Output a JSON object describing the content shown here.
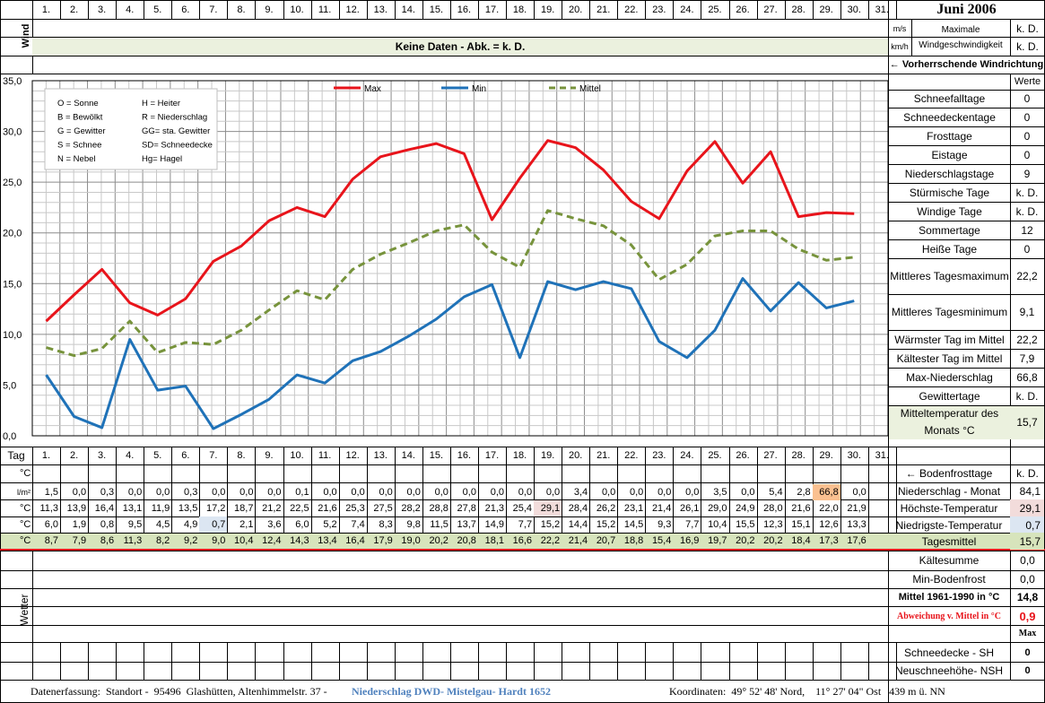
{
  "month_title": "Juni 2006",
  "days": [
    "1.",
    "2.",
    "3.",
    "4.",
    "5.",
    "6.",
    "7.",
    "8.",
    "9.",
    "10.",
    "11.",
    "12.",
    "13.",
    "14.",
    "15.",
    "16.",
    "17.",
    "18.",
    "19.",
    "20.",
    "21.",
    "22.",
    "23.",
    "24.",
    "25.",
    "26.",
    "27.",
    "28.",
    "29.",
    "30.",
    "31."
  ],
  "wind": {
    "label": "Wind",
    "unit_ms": "m/s",
    "unit_kmh": "km/h",
    "max_label": "Maximale Windgeschwindigkeit",
    "max_ms": "k. D.",
    "max_kmh": "k. D.",
    "no_data": "Keine Daten - Abk. = k. D.",
    "direction_label": "← Vorherrschende Windrichtung"
  },
  "legend_symbols": [
    [
      "O = Sonne",
      "H = Heiter"
    ],
    [
      "B = Bewölkt",
      "R = Niederschlag"
    ],
    [
      "G = Gewitter",
      "GG= sta. Gewitter"
    ],
    [
      "S = Schnee",
      "SD= Schneedecke"
    ],
    [
      "N = Nebel",
      "Hg= Hagel"
    ]
  ],
  "chart_data": {
    "type": "line",
    "x": [
      "1.",
      "2.",
      "3.",
      "4.",
      "5.",
      "6.",
      "7.",
      "8.",
      "9.",
      "10.",
      "11.",
      "12.",
      "13.",
      "14.",
      "15.",
      "16.",
      "17.",
      "18.",
      "19.",
      "20.",
      "21.",
      "22.",
      "23.",
      "24.",
      "25.",
      "26.",
      "27.",
      "28.",
      "29.",
      "30."
    ],
    "ylim": [
      0,
      35
    ],
    "yticks": [
      "0,0",
      "5,0",
      "10,0",
      "15,0",
      "20,0",
      "25,0",
      "30,0",
      "35,0"
    ],
    "grid": true,
    "legend_position": "top",
    "series": [
      {
        "name": "Max",
        "color": "#e8141b",
        "style": "solid",
        "values": [
          11.3,
          13.9,
          16.4,
          13.1,
          11.9,
          13.5,
          17.2,
          18.7,
          21.2,
          22.5,
          21.6,
          25.3,
          27.5,
          28.2,
          28.8,
          27.8,
          21.3,
          25.4,
          29.1,
          28.4,
          26.2,
          23.1,
          21.4,
          26.1,
          29.0,
          24.9,
          28.0,
          21.6,
          22.0,
          21.9
        ]
      },
      {
        "name": "Min",
        "color": "#1f72b8",
        "style": "solid",
        "values": [
          6.0,
          1.9,
          0.8,
          9.5,
          4.5,
          4.9,
          0.7,
          2.1,
          3.6,
          6.0,
          5.2,
          7.4,
          8.3,
          9.8,
          11.5,
          13.7,
          14.9,
          7.7,
          15.2,
          14.4,
          15.2,
          14.5,
          9.3,
          7.7,
          10.4,
          15.5,
          12.3,
          15.1,
          12.6,
          13.3
        ]
      },
      {
        "name": "Mittel",
        "color": "#77933c",
        "style": "dashed",
        "values": [
          8.7,
          7.9,
          8.6,
          11.3,
          8.2,
          9.2,
          9.0,
          10.4,
          12.4,
          14.3,
          13.4,
          16.4,
          17.9,
          19.0,
          20.2,
          20.8,
          18.1,
          16.6,
          22.2,
          21.4,
          20.7,
          18.8,
          15.4,
          16.9,
          19.7,
          20.2,
          20.2,
          18.4,
          17.3,
          17.6
        ]
      }
    ]
  },
  "stats_header": "Werte",
  "stats": [
    {
      "label": "Schneefalltage",
      "value": "0"
    },
    {
      "label": "Schneedeckentage",
      "value": "0"
    },
    {
      "label": "Frosttage",
      "value": "0"
    },
    {
      "label": "Eistage",
      "value": "0"
    },
    {
      "label": "Niederschlagstage",
      "value": "9"
    },
    {
      "label": "Stürmische Tage",
      "value": "k. D."
    },
    {
      "label": "Windige Tage",
      "value": "k. D."
    },
    {
      "label": "Sommertage",
      "value": "12"
    },
    {
      "label": "Heiße Tage",
      "value": "0"
    },
    {
      "label": "Mittleres Tagesmaximum",
      "value": "22,2"
    },
    {
      "label": "Mittleres Tagesminimum",
      "value": "9,1"
    },
    {
      "label": "Wärmster Tag im Mittel",
      "value": "22,2"
    },
    {
      "label": "Kältester Tag im Mittel",
      "value": "7,9"
    },
    {
      "label": "Max-Niederschlag",
      "value": "66,8"
    },
    {
      "label": "Gewittertage",
      "value": "k. D."
    },
    {
      "label": "Mitteltemperatur des Monats °C",
      "value": "15,7"
    }
  ],
  "table": {
    "tag_label": "Tag",
    "unit_bodenfrost": "°C",
    "unit_precip": "l/m²",
    "unit_c": "°C",
    "bodenfrost_label": "← Bodenfrosttage",
    "bodenfrost_value": "k. D.",
    "precip": [
      "1,5",
      "0,0",
      "0,3",
      "0,0",
      "0,0",
      "0,3",
      "0,0",
      "0,0",
      "0,0",
      "0,1",
      "0,0",
      "0,0",
      "0,0",
      "0,0",
      "0,0",
      "0,0",
      "0,0",
      "0,0",
      "0,0",
      "3,4",
      "0,0",
      "0,0",
      "0,0",
      "0,0",
      "3,5",
      "0,0",
      "5,4",
      "2,8",
      "66,8",
      "0,0"
    ],
    "max": [
      "11,3",
      "13,9",
      "16,4",
      "13,1",
      "11,9",
      "13,5",
      "17,2",
      "18,7",
      "21,2",
      "22,5",
      "21,6",
      "25,3",
      "27,5",
      "28,2",
      "28,8",
      "27,8",
      "21,3",
      "25,4",
      "29,1",
      "28,4",
      "26,2",
      "23,1",
      "21,4",
      "26,1",
      "29,0",
      "24,9",
      "28,0",
      "21,6",
      "22,0",
      "21,9"
    ],
    "min": [
      "6,0",
      "1,9",
      "0,8",
      "9,5",
      "4,5",
      "4,9",
      "0,7",
      "2,1",
      "3,6",
      "6,0",
      "5,2",
      "7,4",
      "8,3",
      "9,8",
      "11,5",
      "13,7",
      "14,9",
      "7,7",
      "15,2",
      "14,4",
      "15,2",
      "14,5",
      "9,3",
      "7,7",
      "10,4",
      "15,5",
      "12,3",
      "15,1",
      "12,6",
      "13,3"
    ],
    "mean": [
      "8,7",
      "7,9",
      "8,6",
      "11,3",
      "8,2",
      "9,2",
      "9,0",
      "10,4",
      "12,4",
      "14,3",
      "13,4",
      "16,4",
      "17,9",
      "19,0",
      "20,2",
      "20,8",
      "18,1",
      "16,6",
      "22,2",
      "21,4",
      "20,7",
      "18,8",
      "15,4",
      "16,9",
      "19,7",
      "20,2",
      "20,2",
      "18,4",
      "17,3",
      "17,6"
    ],
    "summary": [
      {
        "label": "Niederschlag - Monat",
        "value": "84,1"
      },
      {
        "label": "Höchste-Temperatur",
        "value": "29,1"
      },
      {
        "label": "Niedrigste-Temperatur",
        "value": "0,7"
      },
      {
        "label": "Tagesmittel",
        "value": "15,7"
      }
    ]
  },
  "lower_right": {
    "kaeltesumme_label": "Kältesumme",
    "kaeltesumme_value": "0,0",
    "bodenfrost_label": "Min-Bodenfrost",
    "bodenfrost_value": "0,0",
    "mittel_label": "Mittel 1961-1990 in °C",
    "mittel_value": "14,8",
    "abw_label": "Abweichung v. Mittel in °C",
    "abw_value": "0,9",
    "max_label": "Max",
    "sh_label": "Schneedecke -   SH",
    "sh_value": "0",
    "nsh_label": "Neuschneehöhe- NSH",
    "nsh_value": "0"
  },
  "wetter_label": "Wetter",
  "footer": {
    "left": "Datenerfassung:  Standort -  95496  Glashütten, Altenhimmelstr. 37 - ",
    "link": "Niederschlag DWD- Mistelgau- Hardt 1652",
    "right": "Koordinaten:  49° 52' 48' Nord,    11° 27' 04\" Ost   439 m ü. NN"
  },
  "colors": {
    "band": "#ebf1de",
    "mean_row": "#d7e4bc",
    "max_highlight": "#f2dcdb",
    "min_highlight": "#dce6f2",
    "precip_highlight": "#fac090",
    "red_line": "#e8141b",
    "link": "#4f81bd"
  }
}
